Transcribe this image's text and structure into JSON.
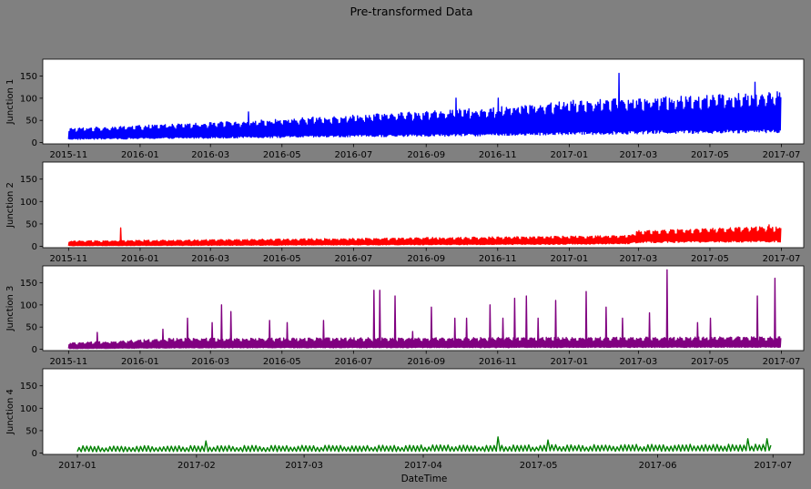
{
  "figure": {
    "title": "Pre-transformed Data",
    "background": "#808080",
    "xlabel": "DateTime"
  },
  "chart_data": [
    {
      "type": "line",
      "ylabel": "Junction 1",
      "color": "#0000ff",
      "ylim": [
        -3,
        188
      ],
      "yticks": [
        0,
        50,
        100,
        150
      ],
      "xlim": [
        "2015-10-10",
        "2017-07-20"
      ],
      "xticks": [
        "2015-11",
        "2016-01",
        "2016-03",
        "2016-05",
        "2016-07",
        "2016-09",
        "2016-11",
        "2017-01",
        "2017-03",
        "2017-05",
        "2017-07"
      ],
      "start": "2015-11-01",
      "end": "2017-06-30",
      "series_envelope": {
        "dates": [
          "2015-11-01",
          "2016-03-01",
          "2016-07-01",
          "2016-11-01",
          "2017-01-01",
          "2017-03-01",
          "2017-06-30"
        ],
        "low": [
          10,
          14,
          18,
          22,
          25,
          28,
          32
        ],
        "high": [
          32,
          45,
          62,
          80,
          95,
          100,
          115
        ]
      },
      "peaks": [
        {
          "date": "2016-04-02",
          "value": 69
        },
        {
          "date": "2016-09-26",
          "value": 100
        },
        {
          "date": "2016-11-01",
          "value": 100
        },
        {
          "date": "2017-02-12",
          "value": 156
        },
        {
          "date": "2017-06-08",
          "value": 136
        }
      ]
    },
    {
      "type": "line",
      "ylabel": "Junction 2",
      "color": "#ff0000",
      "ylim": [
        -3,
        188
      ],
      "yticks": [
        0,
        50,
        100,
        150
      ],
      "xlim": [
        "2015-10-10",
        "2017-07-20"
      ],
      "xticks": [
        "2015-11",
        "2016-01",
        "2016-03",
        "2016-05",
        "2016-07",
        "2016-09",
        "2016-11",
        "2017-01",
        "2017-03",
        "2017-05",
        "2017-07"
      ],
      "start": "2015-11-01",
      "end": "2017-06-30",
      "series_envelope": {
        "dates": [
          "2015-11-01",
          "2016-06-01",
          "2016-12-01",
          "2017-02-20",
          "2017-03-01",
          "2017-06-30"
        ],
        "low": [
          2,
          4,
          6,
          8,
          12,
          14
        ],
        "high": [
          12,
          17,
          22,
          24,
          35,
          45
        ]
      },
      "peaks": [
        {
          "date": "2015-12-15",
          "value": 41
        },
        {
          "date": "2017-06-20",
          "value": 48
        }
      ]
    },
    {
      "type": "line",
      "ylabel": "Junction 3",
      "color": "#800080",
      "ylim": [
        -3,
        188
      ],
      "yticks": [
        0,
        50,
        100,
        150
      ],
      "xlim": [
        "2015-10-10",
        "2017-07-20"
      ],
      "xticks": [
        "2015-11",
        "2016-01",
        "2016-03",
        "2016-05",
        "2016-07",
        "2016-09",
        "2016-11",
        "2017-01",
        "2017-03",
        "2017-05",
        "2017-07"
      ],
      "start": "2015-11-01",
      "end": "2017-06-30",
      "series_envelope": {
        "dates": [
          "2015-11-01",
          "2016-02-01",
          "2017-06-30"
        ],
        "low": [
          2,
          4,
          6
        ],
        "high": [
          14,
          25,
          28
        ]
      },
      "peaks": [
        {
          "date": "2015-11-25",
          "value": 38
        },
        {
          "date": "2016-01-20",
          "value": 45
        },
        {
          "date": "2016-02-10",
          "value": 70
        },
        {
          "date": "2016-03-02",
          "value": 60
        },
        {
          "date": "2016-03-10",
          "value": 100
        },
        {
          "date": "2016-03-18",
          "value": 85
        },
        {
          "date": "2016-04-20",
          "value": 65
        },
        {
          "date": "2016-05-05",
          "value": 60
        },
        {
          "date": "2016-06-05",
          "value": 65
        },
        {
          "date": "2016-07-18",
          "value": 133
        },
        {
          "date": "2016-07-23",
          "value": 133
        },
        {
          "date": "2016-08-05",
          "value": 120
        },
        {
          "date": "2016-08-20",
          "value": 40
        },
        {
          "date": "2016-09-05",
          "value": 95
        },
        {
          "date": "2016-09-25",
          "value": 70
        },
        {
          "date": "2016-10-05",
          "value": 70
        },
        {
          "date": "2016-10-25",
          "value": 100
        },
        {
          "date": "2016-11-05",
          "value": 70
        },
        {
          "date": "2016-11-15",
          "value": 115
        },
        {
          "date": "2016-11-25",
          "value": 120
        },
        {
          "date": "2016-12-05",
          "value": 70
        },
        {
          "date": "2016-12-20",
          "value": 110
        },
        {
          "date": "2017-01-15",
          "value": 130
        },
        {
          "date": "2017-02-01",
          "value": 95
        },
        {
          "date": "2017-02-15",
          "value": 70
        },
        {
          "date": "2017-03-10",
          "value": 82
        },
        {
          "date": "2017-03-25",
          "value": 179
        },
        {
          "date": "2017-04-20",
          "value": 60
        },
        {
          "date": "2017-05-01",
          "value": 70
        },
        {
          "date": "2017-06-10",
          "value": 120
        },
        {
          "date": "2017-06-25",
          "value": 160
        }
      ]
    },
    {
      "type": "line",
      "ylabel": "Junction 4",
      "color": "#008000",
      "ylim": [
        -3,
        188
      ],
      "yticks": [
        0,
        50,
        100,
        150
      ],
      "xlim": [
        "2016-12-23",
        "2017-07-09"
      ],
      "xticks": [
        "2017-01",
        "2017-02",
        "2017-03",
        "2017-04",
        "2017-05",
        "2017-06",
        "2017-07"
      ],
      "start": "2017-01-01",
      "end": "2017-06-30",
      "series_envelope": {
        "dates": [
          "2017-01-01",
          "2017-06-30"
        ],
        "low": [
          4,
          6
        ],
        "high": [
          16,
          20
        ]
      },
      "peaks": [
        {
          "date": "2017-02-03",
          "value": 27
        },
        {
          "date": "2017-04-20",
          "value": 36
        },
        {
          "date": "2017-05-03",
          "value": 29
        },
        {
          "date": "2017-06-24",
          "value": 32
        },
        {
          "date": "2017-06-29",
          "value": 32
        }
      ]
    }
  ]
}
